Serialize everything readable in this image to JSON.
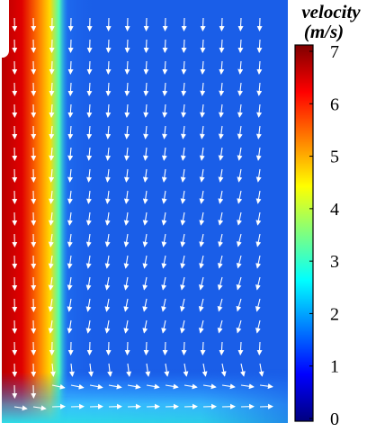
{
  "colorbar": {
    "title_line1": "velocity",
    "title_line2": "(m/s)",
    "min": 0,
    "max": 7,
    "ticks": [
      "0",
      "1",
      "2",
      "3",
      "4",
      "5",
      "6",
      "7"
    ],
    "colormap": [
      "#00007f",
      "#0000ff",
      "#007fff",
      "#00ffff",
      "#7fff7f",
      "#ffff00",
      "#ff7f00",
      "#ff0000",
      "#7f0000"
    ]
  },
  "field": {
    "background_color": "#1a5ee8",
    "jet_peak_velocity": 7,
    "floor_flow_velocity": 2.5,
    "arrow_color": "#ffffff"
  }
}
